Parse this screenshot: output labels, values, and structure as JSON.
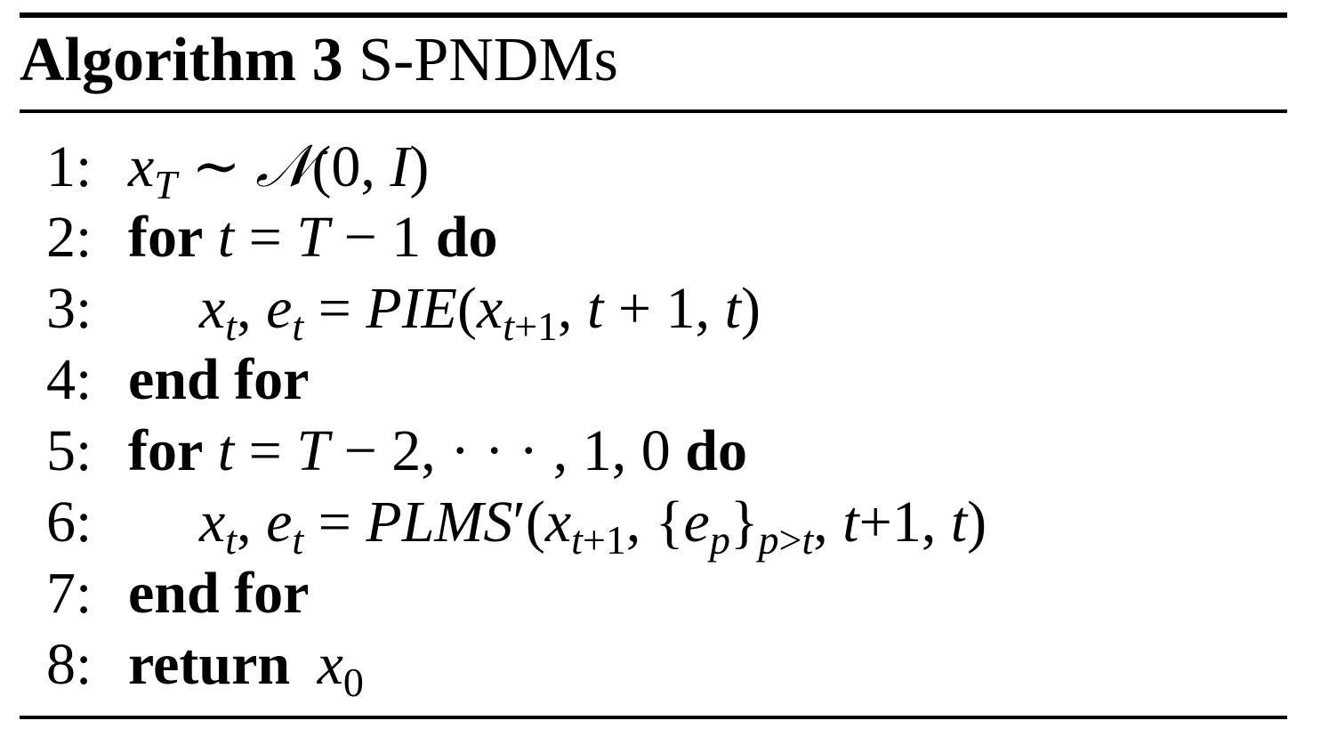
{
  "algorithm": {
    "label": "Algorithm 3",
    "name": "S-PNDMs"
  },
  "lines": [
    {
      "num": "1:",
      "text": "x_T ∼ N(0, I)"
    },
    {
      "num": "2:",
      "kw_for": "for",
      "cond": "t = T − 1",
      "kw_do": "do"
    },
    {
      "num": "3:",
      "text": "x_t, e_t = PIE(x_{t+1}, t + 1, t)"
    },
    {
      "num": "4:",
      "kw": "end for"
    },
    {
      "num": "5:",
      "kw_for": "for",
      "cond": "t = T − 2, · · · , 1, 0",
      "kw_do": "do"
    },
    {
      "num": "6:",
      "text": "x_t, e_t = PLMS′(x_{t+1}, {e_p}_{p>t}, t+1, t)"
    },
    {
      "num": "7:",
      "kw": "end for"
    },
    {
      "num": "8:",
      "kw": "return",
      "text": "x_0"
    }
  ]
}
